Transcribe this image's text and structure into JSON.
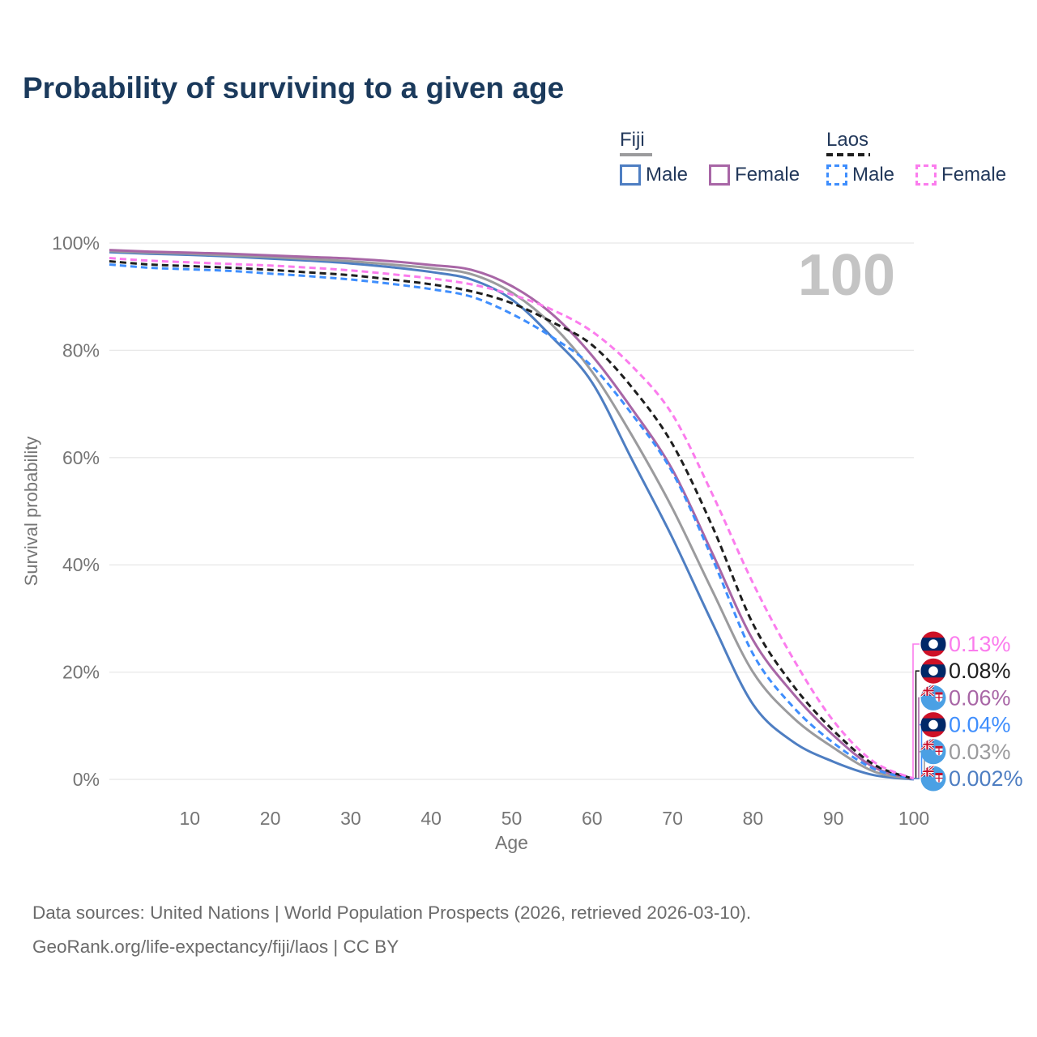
{
  "title": "Probability of surviving to a given age",
  "age_counter": "100",
  "legend": {
    "groups": [
      {
        "country": "Fiji",
        "line_style": "solid",
        "underline_color": "#9b9b9d",
        "entries": [
          {
            "label": "Male",
            "series": "fiji_male"
          },
          {
            "label": "Female",
            "series": "fiji_female"
          }
        ]
      },
      {
        "country": "Laos",
        "line_style": "dashed",
        "underline_color": "#1e1e1e",
        "entries": [
          {
            "label": "Male",
            "series": "laos_male"
          },
          {
            "label": "Female",
            "series": "laos_female"
          }
        ]
      }
    ]
  },
  "footer": {
    "line1": "Data sources: United Nations | World Population Prospects (2026, retrieved 2026-03-10).",
    "line2": "GeoRank.org/life-expectancy/fiji/laos | CC BY"
  },
  "chart_data": {
    "type": "line",
    "title": "Probability of surviving to a given age",
    "xlabel": "Age",
    "ylabel": "Survival probability",
    "xlim": [
      0,
      100
    ],
    "ylim": [
      0,
      100
    ],
    "x_ticks": [
      10,
      20,
      30,
      40,
      50,
      60,
      70,
      80,
      90,
      100
    ],
    "y_ticks": [
      "0%",
      "20%",
      "40%",
      "60%",
      "80%",
      "100%"
    ],
    "grid": "horizontal",
    "x": [
      0,
      5,
      10,
      15,
      20,
      25,
      30,
      35,
      40,
      45,
      50,
      55,
      60,
      65,
      70,
      75,
      80,
      85,
      90,
      95,
      100
    ],
    "series": [
      {
        "key": "fiji_male",
        "name": "Fiji Male",
        "country": "fiji",
        "color": "#4e7ec2",
        "dash": "none",
        "values": [
          98.3,
          98.0,
          97.8,
          97.5,
          97.1,
          96.7,
          96.2,
          95.5,
          94.6,
          93.2,
          89.5,
          82.5,
          74.0,
          59.5,
          45.0,
          29.0,
          14.0,
          7.0,
          3.3,
          0.8,
          0.002
        ],
        "end_label": "0.002%",
        "label_slot": 5
      },
      {
        "key": "fiji_total",
        "name": "Fiji",
        "country": "fiji",
        "color": "#9b9b9d",
        "dash": "none",
        "values": [
          98.5,
          98.2,
          98.0,
          97.7,
          97.4,
          97.0,
          96.6,
          96.0,
          95.3,
          94.2,
          90.8,
          84.8,
          76.0,
          64.0,
          50.5,
          35.0,
          20.0,
          11.5,
          5.9,
          1.5,
          0.03
        ],
        "end_label": "0.03%",
        "label_slot": 4
      },
      {
        "key": "fiji_female",
        "name": "Fiji Female",
        "country": "fiji",
        "color": "#a866a6",
        "dash": "none",
        "values": [
          98.7,
          98.4,
          98.2,
          98.0,
          97.7,
          97.4,
          97.1,
          96.6,
          95.9,
          95.0,
          92.0,
          86.8,
          79.0,
          69.0,
          57.7,
          42.0,
          26.0,
          16.0,
          8.2,
          2.3,
          0.06
        ],
        "end_label": "0.06%",
        "label_slot": 2
      },
      {
        "key": "laos_male",
        "name": "Laos Male",
        "country": "laos",
        "color": "#3f8efd",
        "dash": "8 5",
        "values": [
          96.0,
          95.4,
          95.1,
          94.8,
          94.3,
          93.8,
          93.2,
          92.4,
          91.4,
          90.0,
          86.8,
          82.5,
          77.0,
          68.0,
          57.2,
          41.0,
          23.4,
          13.5,
          6.8,
          2.0,
          0.04
        ],
        "end_label": "0.04%",
        "label_slot": 3
      },
      {
        "key": "laos_total",
        "name": "Laos",
        "country": "laos",
        "color": "#1e1e1e",
        "dash": "8 5",
        "values": [
          96.6,
          96.0,
          95.7,
          95.4,
          95.0,
          94.5,
          94.0,
          93.2,
          92.3,
          91.0,
          88.8,
          85.3,
          81.0,
          73.0,
          62.5,
          47.0,
          29.0,
          17.5,
          9.1,
          2.8,
          0.08
        ],
        "end_label": "0.08%",
        "label_slot": 1
      },
      {
        "key": "laos_female",
        "name": "Laos Female",
        "country": "laos",
        "color": "#fb7ced",
        "dash": "8 5",
        "values": [
          97.2,
          96.7,
          96.4,
          96.1,
          95.8,
          95.4,
          94.9,
          94.2,
          93.4,
          92.3,
          90.4,
          87.6,
          83.5,
          77.0,
          68.0,
          53.0,
          36.6,
          22.5,
          10.9,
          3.3,
          0.13
        ],
        "end_label": "0.13%",
        "label_slot": 0
      }
    ]
  },
  "colors": {
    "title": "#1b3a5c",
    "axis_text": "#757575",
    "gridline": "#e8e8e8",
    "age_counter": "#c4c4c4",
    "laos_flag_red": "#CE1126",
    "laos_flag_blue": "#002868",
    "fiji_flag_blue": "#4BA0E4"
  }
}
